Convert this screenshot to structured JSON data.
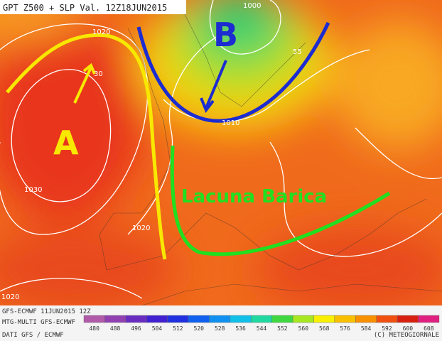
{
  "header": {
    "title": "GPT Z500 + SLP Val. 12Z18JUN2015"
  },
  "labels": {
    "high": "A",
    "low": "B",
    "region": "Lacuna Barica"
  },
  "isobars": [
    {
      "label": "1020"
    },
    {
      "label": "30"
    },
    {
      "label": "1000"
    },
    {
      "label": "55"
    },
    {
      "label": "1010"
    },
    {
      "label": "1030"
    },
    {
      "label": "1020"
    },
    {
      "label": "1020"
    }
  ],
  "footer": {
    "run": "GFS-ECMWF 11JUN2015 12Z",
    "model": "MTG-MULTI GFS-ECMWF",
    "source": "DATI GFS / ECMWF",
    "copyright": "(C) METEOGIORNALE"
  },
  "legend": {
    "values": [
      480,
      488,
      496,
      504,
      512,
      520,
      528,
      536,
      544,
      552,
      560,
      568,
      576,
      584,
      592,
      600,
      608
    ],
    "colors": [
      "#b05aa8",
      "#9040b0",
      "#6a2cc0",
      "#4020d0",
      "#2030e0",
      "#1060f0",
      "#1090f0",
      "#10c0e8",
      "#20d8a0",
      "#40d840",
      "#a8e820",
      "#f8f000",
      "#f8c000",
      "#f89000",
      "#f05010",
      "#d82010",
      "#e02080"
    ]
  }
}
